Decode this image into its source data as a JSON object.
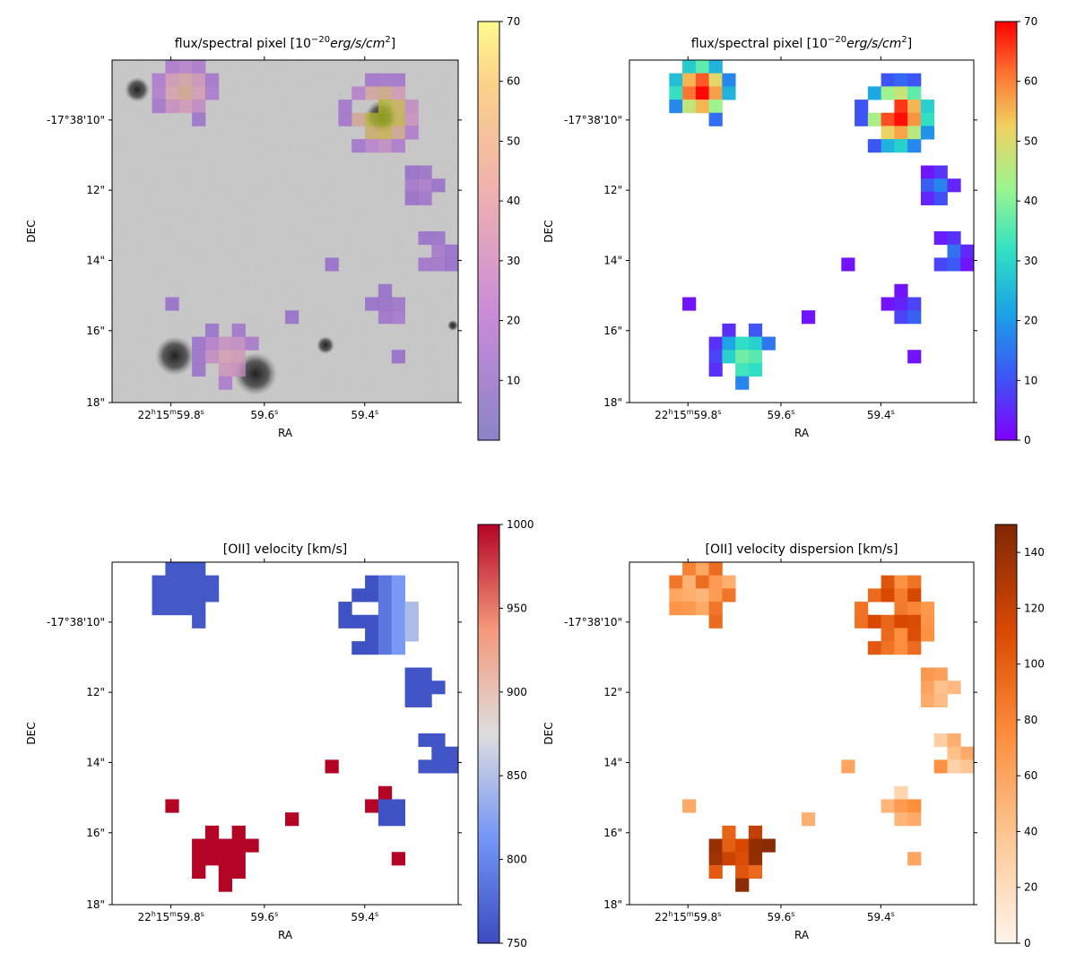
{
  "figure": {
    "panels": [
      {
        "id": "p1",
        "title": "flux/spectral pixel [10",
        "title_exp": "−20",
        "title_unit": "erg/s/cm",
        "title_sq": "2",
        "title_end": "]",
        "colormap": "purple-to-yellow (over greyscale image)",
        "cbar_ticks": [
          "10",
          "20",
          "30",
          "40",
          "50",
          "60",
          "70"
        ],
        "cbar_range": [
          0,
          70
        ],
        "xlabel": "RA",
        "ylabel": "DEC"
      },
      {
        "id": "p2",
        "title": "flux/spectral pixel [10",
        "title_exp": "−20",
        "title_unit": "erg/s/cm",
        "title_sq": "2",
        "title_end": "]",
        "colormap": "rainbow",
        "cbar_ticks": [
          "0",
          "10",
          "20",
          "30",
          "40",
          "50",
          "60",
          "70"
        ],
        "cbar_range": [
          0,
          70
        ],
        "xlabel": "RA",
        "ylabel": "DEC"
      },
      {
        "id": "p3",
        "title": "[OII] velocity [km/s]",
        "colormap": "coolwarm",
        "cbar_ticks": [
          "750",
          "800",
          "850",
          "900",
          "950",
          "1000"
        ],
        "cbar_range": [
          750,
          1000
        ],
        "xlabel": "RA",
        "ylabel": "DEC"
      },
      {
        "id": "p4",
        "title": "[OII] velocity dispersion [km/s]",
        "colormap": "oranges",
        "cbar_ticks": [
          "0",
          "20",
          "40",
          "60",
          "80",
          "100",
          "120",
          "140"
        ],
        "cbar_range": [
          0,
          150
        ],
        "xlabel": "RA",
        "ylabel": "DEC"
      }
    ],
    "ytick_labels": [
      "-17°38'10\"",
      "12\"",
      "14\"",
      "16\"",
      "18\""
    ],
    "xtick_labels": [
      {
        "h": "22",
        "hs": "h",
        "m": "15",
        "ms": "m",
        "s": "59.8",
        "ss": "s"
      },
      {
        "s": "59.6",
        "ss": "s"
      },
      {
        "s": "59.4",
        "ss": "s"
      }
    ]
  },
  "chart_data": [
    {
      "type": "heatmap",
      "title": "flux/spectral pixel [10^-20 erg/s/cm^2]",
      "xlabel": "RA",
      "ylabel": "DEC",
      "x_ticks": [
        "22h15m59.8s",
        "59.6s",
        "59.4s"
      ],
      "y_ticks": [
        "-17°38'10\"",
        "12\"",
        "14\"",
        "16\"",
        "18\""
      ],
      "colorbar_range": [
        0,
        70
      ],
      "background": "greyscale continuum image",
      "sources": [
        {
          "region": "upper-left (RA 59.84s, DEC 9\")",
          "peak_flux": 45
        },
        {
          "region": "upper-right (RA 59.37s, DEC 10\")",
          "peak_flux": 70
        },
        {
          "region": "lower-middle (RA 59.68s, DEC 17.2\")",
          "peak_flux": 40
        }
      ]
    },
    {
      "type": "heatmap",
      "title": "flux/spectral pixel [10^-20 erg/s/cm^2]",
      "xlabel": "RA",
      "ylabel": "DEC",
      "x_ticks": [
        "22h15m59.8s",
        "59.6s",
        "59.4s"
      ],
      "y_ticks": [
        "-17°38'10\"",
        "12\"",
        "14\"",
        "16\"",
        "18\""
      ],
      "colorbar_range": [
        0,
        70
      ],
      "sources": [
        {
          "region": "upper-left",
          "peak_flux": 70
        },
        {
          "region": "upper-right",
          "peak_flux": 70
        },
        {
          "region": "lower-middle",
          "peak_flux": 40
        }
      ]
    },
    {
      "type": "heatmap",
      "title": "[OII] velocity [km/s]",
      "xlabel": "RA",
      "ylabel": "DEC",
      "x_ticks": [
        "22h15m59.8s",
        "59.6s",
        "59.4s"
      ],
      "y_ticks": [
        "-17°38'10\"",
        "12\"",
        "14\"",
        "16\"",
        "18\""
      ],
      "colorbar_range": [
        750,
        1000
      ],
      "sources": [
        {
          "region": "upper-left",
          "velocity": 760
        },
        {
          "region": "upper-right",
          "velocity": 780
        },
        {
          "region": "right-side",
          "velocity": 760
        },
        {
          "region": "lower-middle",
          "velocity": 1000
        }
      ]
    },
    {
      "type": "heatmap",
      "title": "[OII] velocity dispersion [km/s]",
      "xlabel": "RA",
      "ylabel": "DEC",
      "x_ticks": [
        "22h15m59.8s",
        "59.6s",
        "59.4s"
      ],
      "y_ticks": [
        "-17°38'10\"",
        "12\"",
        "14\"",
        "16\"",
        "18\""
      ],
      "colorbar_range": [
        0,
        150
      ],
      "sources": [
        {
          "region": "upper-left",
          "dispersion": 70
        },
        {
          "region": "upper-right",
          "dispersion": 95
        },
        {
          "region": "right-side",
          "dispersion": 60
        },
        {
          "region": "lower-middle",
          "dispersion": 120
        }
      ]
    }
  ]
}
